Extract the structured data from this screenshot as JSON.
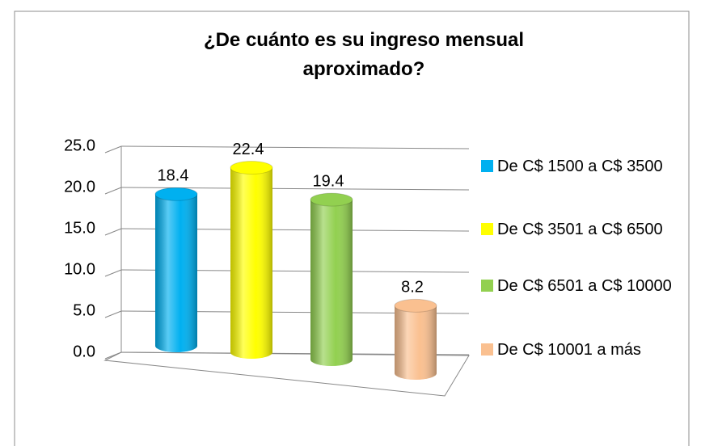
{
  "chart_data": {
    "type": "bar",
    "title": "¿De cuánto es su ingreso mensual aproximado?",
    "series": [
      {
        "name": "De C$ 1500 a C$ 3500",
        "color": "#00b0f0",
        "values": [
          18.4
        ]
      },
      {
        "name": "De C$ 3501 a C$ 6500",
        "color": "#ffff00",
        "values": [
          22.4
        ]
      },
      {
        "name": "De C$ 6501 a C$ 10000",
        "color": "#92d050",
        "values": [
          19.4
        ]
      },
      {
        "name": "De C$ 10001 a más",
        "color": "#fac090",
        "values": [
          8.2
        ]
      }
    ],
    "ylim": [
      0,
      25
    ],
    "yticks": [
      {
        "value": 0,
        "label": "0.0"
      },
      {
        "value": 5,
        "label": "5.0"
      },
      {
        "value": 10,
        "label": "10.0"
      },
      {
        "value": 15,
        "label": "15.0"
      },
      {
        "value": 20,
        "label": "20.0"
      },
      {
        "value": 25,
        "label": "25.0"
      }
    ],
    "grid": true,
    "legend": "right"
  }
}
